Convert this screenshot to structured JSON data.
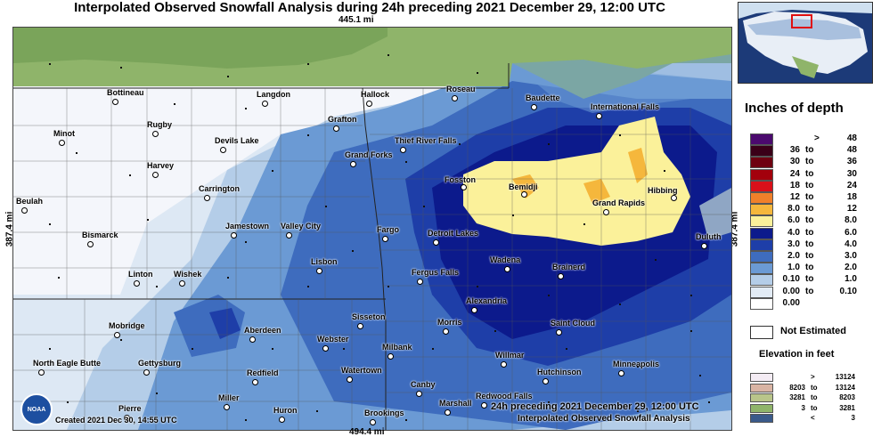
{
  "title": "Interpolated Observed Snowfall Analysis during 24h preceding 2021 December 29, 12:00 UTC",
  "scale": {
    "top": "445.1 mi",
    "bottom": "494.4 mi",
    "left": "387.4 mi",
    "right": "387.4 mi"
  },
  "created": "Created 2021 Dec 30, 14:55 UTC",
  "caption_line1": "24h preceding 2021 December 29, 12:00 UTC",
  "caption_line2": "Interpolated Observed Snowfall Analysis",
  "logo_text": "NOAA",
  "cities": [
    {
      "name": "Bottineau",
      "dot": true
    },
    {
      "name": "Langdon",
      "dot": true
    },
    {
      "name": "Hallock",
      "dot": true
    },
    {
      "name": "Roseau",
      "dot": true
    },
    {
      "name": "Baudette",
      "dot": true
    },
    {
      "name": "International Falls",
      "dot": true
    },
    {
      "name": "Rugby",
      "dot": true
    },
    {
      "name": "Minot",
      "dot": true
    },
    {
      "name": "Grafton",
      "dot": true
    },
    {
      "name": "Devils Lake",
      "dot": true
    },
    {
      "name": "Thief River Falls",
      "dot": true
    },
    {
      "name": "Grand Forks",
      "dot": true
    },
    {
      "name": "Harvey",
      "dot": true
    },
    {
      "name": "Fosston",
      "dot": true
    },
    {
      "name": "Bemidji",
      "dot": true
    },
    {
      "name": "Hibbing",
      "dot": true
    },
    {
      "name": "Carrington",
      "dot": true
    },
    {
      "name": "Beulah",
      "dot": true
    },
    {
      "name": "Grand Rapids",
      "dot": true
    },
    {
      "name": "Jamestown",
      "dot": true
    },
    {
      "name": "Valley City",
      "dot": true
    },
    {
      "name": "Fargo",
      "dot": true
    },
    {
      "name": "Detroit Lakes",
      "dot": true
    },
    {
      "name": "Duluth",
      "dot": true
    },
    {
      "name": "Bismarck",
      "dot": true
    },
    {
      "name": "Lisbon",
      "dot": true
    },
    {
      "name": "Fergus Falls",
      "dot": true
    },
    {
      "name": "Wadena",
      "dot": true
    },
    {
      "name": "Brainerd",
      "dot": true
    },
    {
      "name": "Linton",
      "dot": true
    },
    {
      "name": "Wishek",
      "dot": true
    },
    {
      "name": "Alexandria",
      "dot": true
    },
    {
      "name": "Sisseton",
      "dot": true
    },
    {
      "name": "Morris",
      "dot": true
    },
    {
      "name": "Saint Cloud",
      "dot": true
    },
    {
      "name": "Mobridge",
      "dot": true
    },
    {
      "name": "Aberdeen",
      "dot": true
    },
    {
      "name": "Webster",
      "dot": true
    },
    {
      "name": "Milbank",
      "dot": true
    },
    {
      "name": "Willmar",
      "dot": true
    },
    {
      "name": "North Eagle Butte",
      "dot": true
    },
    {
      "name": "Gettysburg",
      "dot": true
    },
    {
      "name": "Redfield",
      "dot": true
    },
    {
      "name": "Watertown",
      "dot": true
    },
    {
      "name": "Hutchinson",
      "dot": true
    },
    {
      "name": "Minneapolis",
      "dot": true
    },
    {
      "name": "Canby",
      "dot": true
    },
    {
      "name": "Miller",
      "dot": true
    },
    {
      "name": "Redwood Falls",
      "dot": true
    },
    {
      "name": "Pierre",
      "dot": true
    },
    {
      "name": "Huron",
      "dot": true
    },
    {
      "name": "Marshall",
      "dot": true
    },
    {
      "name": "Brookings",
      "dot": true
    }
  ],
  "legend": {
    "title": "Inches of depth",
    "rows": [
      {
        "lo": "",
        "to": "",
        "hi": "",
        "gt": ">",
        "val": "48",
        "color": "#4b0a6e"
      },
      {
        "lo": "36",
        "to": "to",
        "hi": "48",
        "color": "#3a0018"
      },
      {
        "lo": "30",
        "to": "to",
        "hi": "36",
        "color": "#6e0010"
      },
      {
        "lo": "24",
        "to": "to",
        "hi": "30",
        "color": "#a3000c"
      },
      {
        "lo": "18",
        "to": "to",
        "hi": "24",
        "color": "#d9101a"
      },
      {
        "lo": "12",
        "to": "to",
        "hi": "18",
        "color": "#f0802a"
      },
      {
        "lo": "8.0",
        "to": "to",
        "hi": "12",
        "color": "#f5b73c"
      },
      {
        "lo": "6.0",
        "to": "to",
        "hi": "8.0",
        "color": "#fbf19a"
      },
      {
        "lo": "4.0",
        "to": "to",
        "hi": "6.0",
        "color": "#0c1a8c"
      },
      {
        "lo": "3.0",
        "to": "to",
        "hi": "4.0",
        "color": "#1e3ea8"
      },
      {
        "lo": "2.0",
        "to": "to",
        "hi": "3.0",
        "color": "#3e6cbe"
      },
      {
        "lo": "1.0",
        "to": "to",
        "hi": "2.0",
        "color": "#6b9ad4"
      },
      {
        "lo": "0.10",
        "to": "to",
        "hi": "1.0",
        "color": "#b4cde8"
      },
      {
        "lo": "0.00",
        "to": "to",
        "hi": "0.10",
        "color": "#e2ebf5"
      },
      {
        "lo": "0.00",
        "to": "",
        "hi": "",
        "color": "#ffffff"
      }
    ],
    "not_estimated": "Not Estimated",
    "elevation_title": "Elevation in feet",
    "elevation_rows": [
      {
        "lo": "",
        "to": ">",
        "hi": "13124",
        "color": "#f4ecf4"
      },
      {
        "lo": "8203",
        "to": "to",
        "hi": "13124",
        "color": "#d9b4a4"
      },
      {
        "lo": "3281",
        "to": "to",
        "hi": "8203",
        "color": "#b9c58a"
      },
      {
        "lo": "3",
        "to": "to",
        "hi": "3281",
        "color": "#8fb46a"
      },
      {
        "lo": "",
        "to": "<",
        "hi": "3",
        "color": "#3a5a8a"
      }
    ]
  },
  "colors": {
    "canada": "#8fb46a",
    "canada_dark": "#6c9a50",
    "snow_none": "#f4f6fb"
  }
}
